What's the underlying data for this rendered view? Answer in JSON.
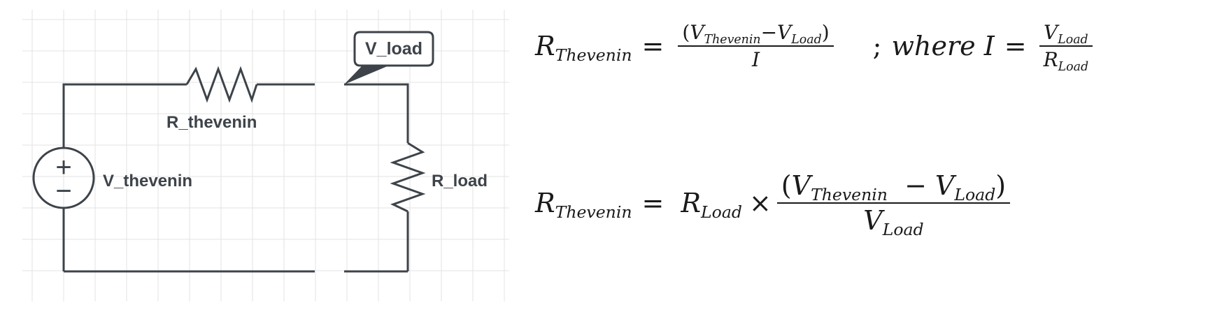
{
  "circuit": {
    "source_label": "V_thevenin",
    "source_plus": "+",
    "source_minus": "−",
    "resistor_top_label": "R_thevenin",
    "resistor_right_label": "R_load",
    "callout_label": "V_load"
  },
  "equation1": {
    "lhs_sym": "R",
    "lhs_sub": "Thevenin",
    "eq_sign": "=",
    "num_open": "(",
    "num_v1": "V",
    "num_v1_sub": "Thevenin",
    "num_minus": "−",
    "num_v2": "V",
    "num_v2_sub": "Load",
    "num_close": ")",
    "den": "I",
    "separator": ";",
    "where_text": "where I",
    "eq_sign2": "=",
    "rhs_num": "V",
    "rhs_num_sub": "Load",
    "rhs_den": "R",
    "rhs_den_sub": "Load"
  },
  "equation2": {
    "lhs_sym": "R",
    "lhs_sub": "Thevenin",
    "eq_sign": "=",
    "r_sym": "R",
    "r_sub": "Load",
    "times": "×",
    "num_open": "(",
    "num_v1": "V",
    "num_v1_sub": "Thevenin",
    "num_minus": "−",
    "num_v2": "V",
    "num_v2_sub": "Load",
    "num_close": ")",
    "den": "V",
    "den_sub": "Load"
  }
}
